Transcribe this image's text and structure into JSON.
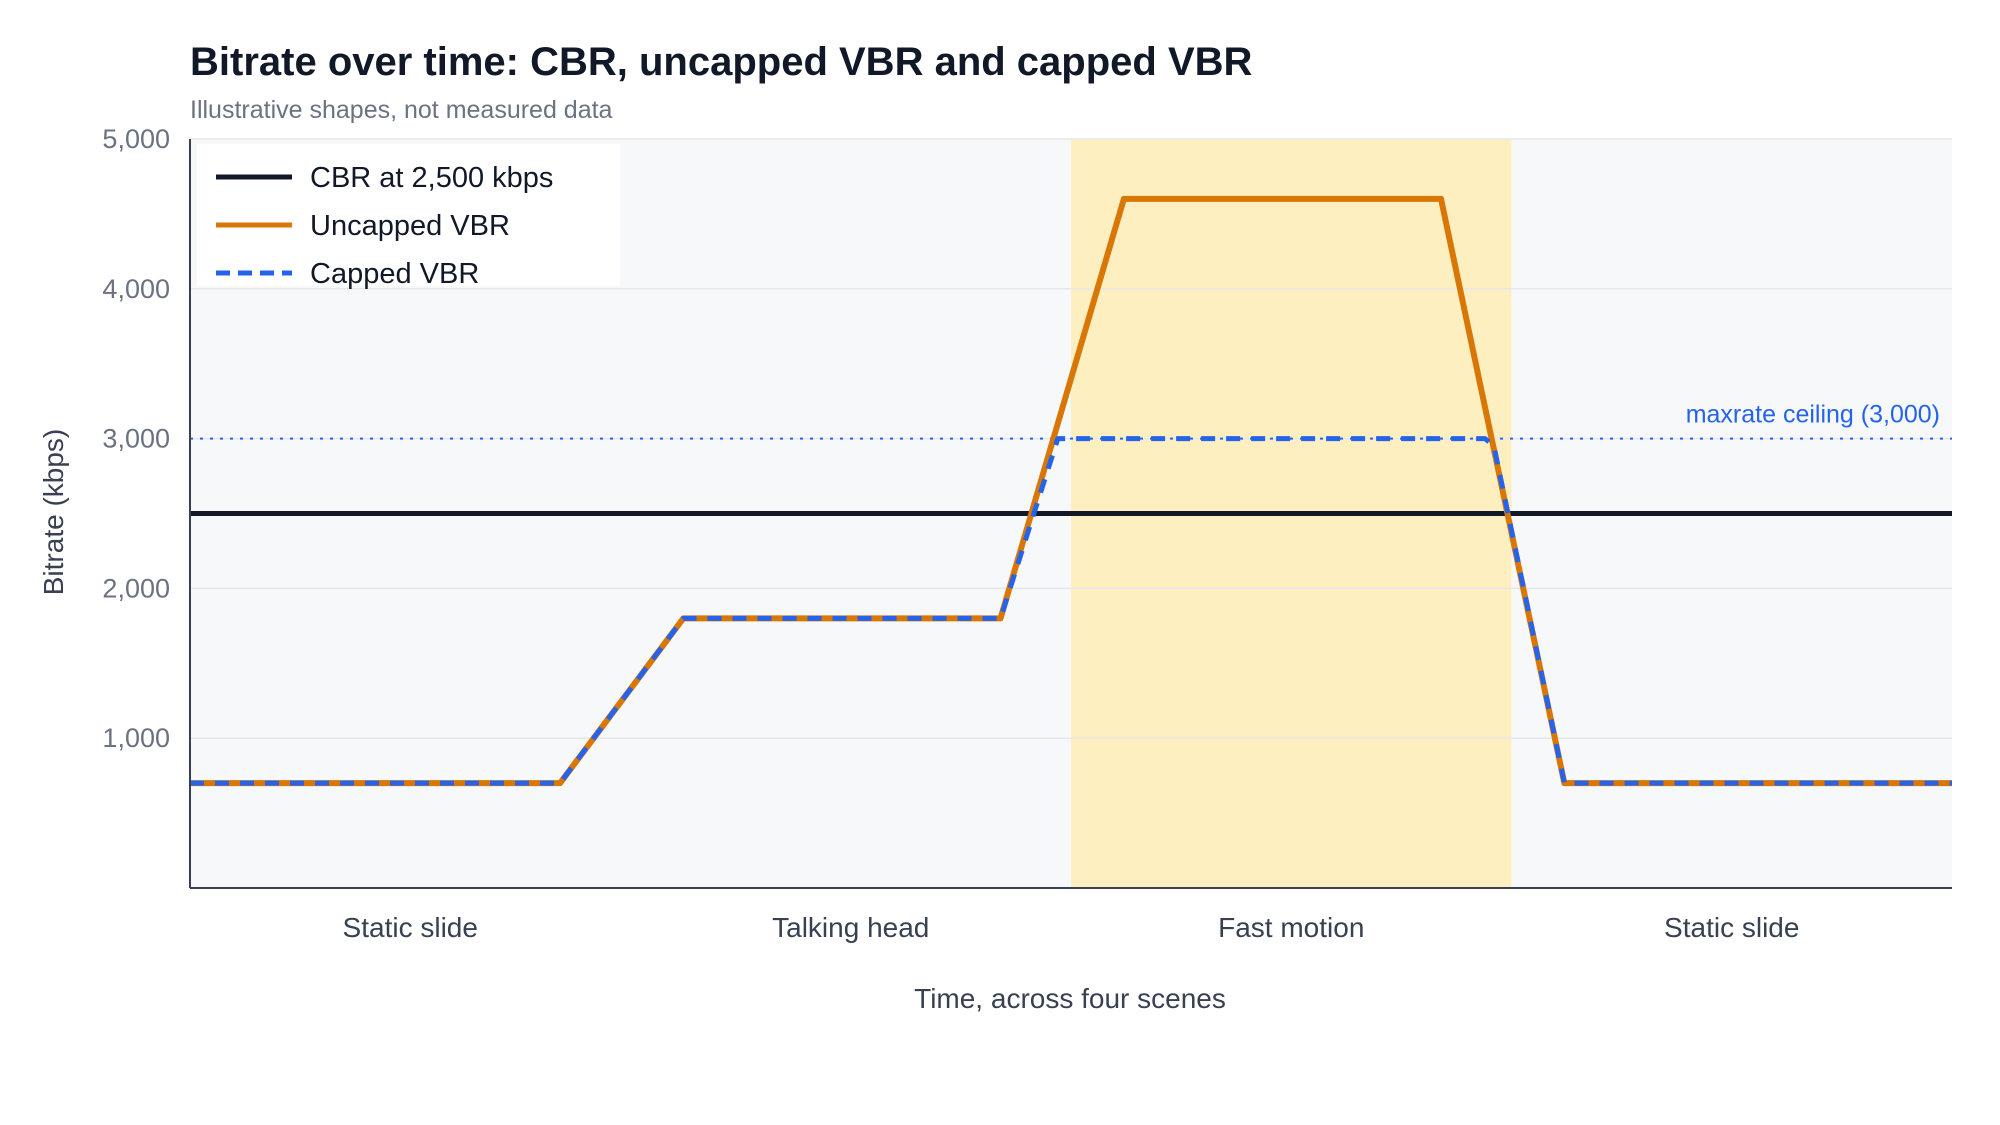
{
  "chart_data": {
    "type": "line",
    "title": "Bitrate over time: CBR, uncapped VBR and capped VBR",
    "subtitle": "Illustrative shapes, not measured data",
    "xlabel": "Time, across four scenes",
    "ylabel": "Bitrate (kbps)",
    "xlim": [
      0,
      4
    ],
    "ylim": [
      0,
      5000
    ],
    "yticks": [
      1000,
      2000,
      3000,
      4000,
      5000
    ],
    "ytick_labels": [
      "1,000",
      "2,000",
      "3,000",
      "4,000",
      "5,000"
    ],
    "categories": [
      "Static slide",
      "Talking head",
      "Fast motion",
      "Static slide"
    ],
    "grid": true,
    "legend_position": "top-left",
    "highlight_region": {
      "x": [
        2,
        3
      ],
      "color": "#fdefc0"
    },
    "ceiling": {
      "value": 3000,
      "label": "maxrate ceiling (3,000)",
      "color": "#2563eb"
    },
    "colors": {
      "cbr": "#111827",
      "uncapped": "#d97706",
      "capped": "#2563eb",
      "plot_bg": "#f7f8fa",
      "grid": "#e5e7eb"
    },
    "series": [
      {
        "name": "CBR at 2,500 kbps",
        "key": "cbr",
        "style": "solid",
        "x": [
          0,
          4
        ],
        "y": [
          2500,
          2500
        ]
      },
      {
        "name": "Uncapped VBR",
        "key": "uncapped",
        "style": "solid",
        "x": [
          0,
          0.84,
          1.12,
          1.84,
          2.12,
          2.84,
          3.12,
          4.0
        ],
        "y": [
          700,
          700,
          1800,
          1800,
          4600,
          4600,
          700,
          700
        ]
      },
      {
        "name": "Capped VBR",
        "key": "capped",
        "style": "dashed",
        "x": [
          0,
          0.84,
          1.12,
          1.84,
          1.97,
          2.94,
          2.96,
          3.12,
          4.0
        ],
        "y": [
          700,
          700,
          1800,
          1800,
          3000,
          3000,
          2950,
          700,
          700
        ]
      }
    ]
  }
}
